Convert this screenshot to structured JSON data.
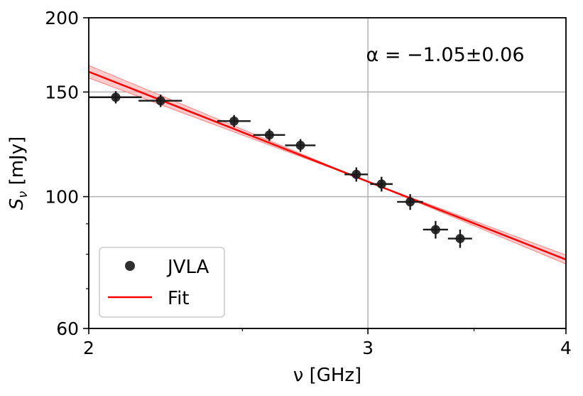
{
  "chart_data": {
    "type": "scatter",
    "title": "",
    "xlabel": "ν [GHz]",
    "ylabel": "Sν [mJy]",
    "xscale": "log",
    "yscale": "log",
    "xlim": [
      2,
      4
    ],
    "ylim": [
      60,
      200
    ],
    "xticks": [
      2,
      3,
      4
    ],
    "xtick_labels": [
      "2",
      "3",
      "4"
    ],
    "yticks": [
      60,
      100,
      150,
      200
    ],
    "ytick_labels": [
      "60",
      "100",
      "150",
      "200"
    ],
    "grid": true,
    "legend": {
      "position": "bottom-left",
      "entries": [
        {
          "label": "JVLA",
          "marker": "circle",
          "color": "#1a1a1a"
        },
        {
          "label": "Fit",
          "marker": "line",
          "color": "#ff0000"
        }
      ]
    },
    "annotation": "α = −1.05±0.06",
    "series": [
      {
        "name": "JVLA",
        "color": "#1a1a1a",
        "points": [
          {
            "x": 2.08,
            "y": 147,
            "xerr": 0.08,
            "yerr": 3.5
          },
          {
            "x": 2.22,
            "y": 145,
            "xerr": 0.07,
            "yerr": 3.5
          },
          {
            "x": 2.47,
            "y": 134,
            "xerr": 0.06,
            "yerr": 3.2
          },
          {
            "x": 2.6,
            "y": 127,
            "xerr": 0.06,
            "yerr": 3.0
          },
          {
            "x": 2.72,
            "y": 122,
            "xerr": 0.06,
            "yerr": 3.0
          },
          {
            "x": 2.95,
            "y": 109,
            "xerr": 0.05,
            "yerr": 3.0
          },
          {
            "x": 3.06,
            "y": 105,
            "xerr": 0.05,
            "yerr": 3.0
          },
          {
            "x": 3.19,
            "y": 98,
            "xerr": 0.06,
            "yerr": 3.0
          },
          {
            "x": 3.31,
            "y": 88,
            "xerr": 0.06,
            "yerr": 3.0
          },
          {
            "x": 3.43,
            "y": 85,
            "xerr": 0.06,
            "yerr": 3.0
          }
        ]
      },
      {
        "name": "Fit",
        "color": "#ff0000",
        "model": "power-law",
        "amplitude_at_3GHz": 106,
        "alpha": -1.05,
        "alpha_err": 0.06,
        "band_color": "#ffaaaa"
      }
    ]
  }
}
